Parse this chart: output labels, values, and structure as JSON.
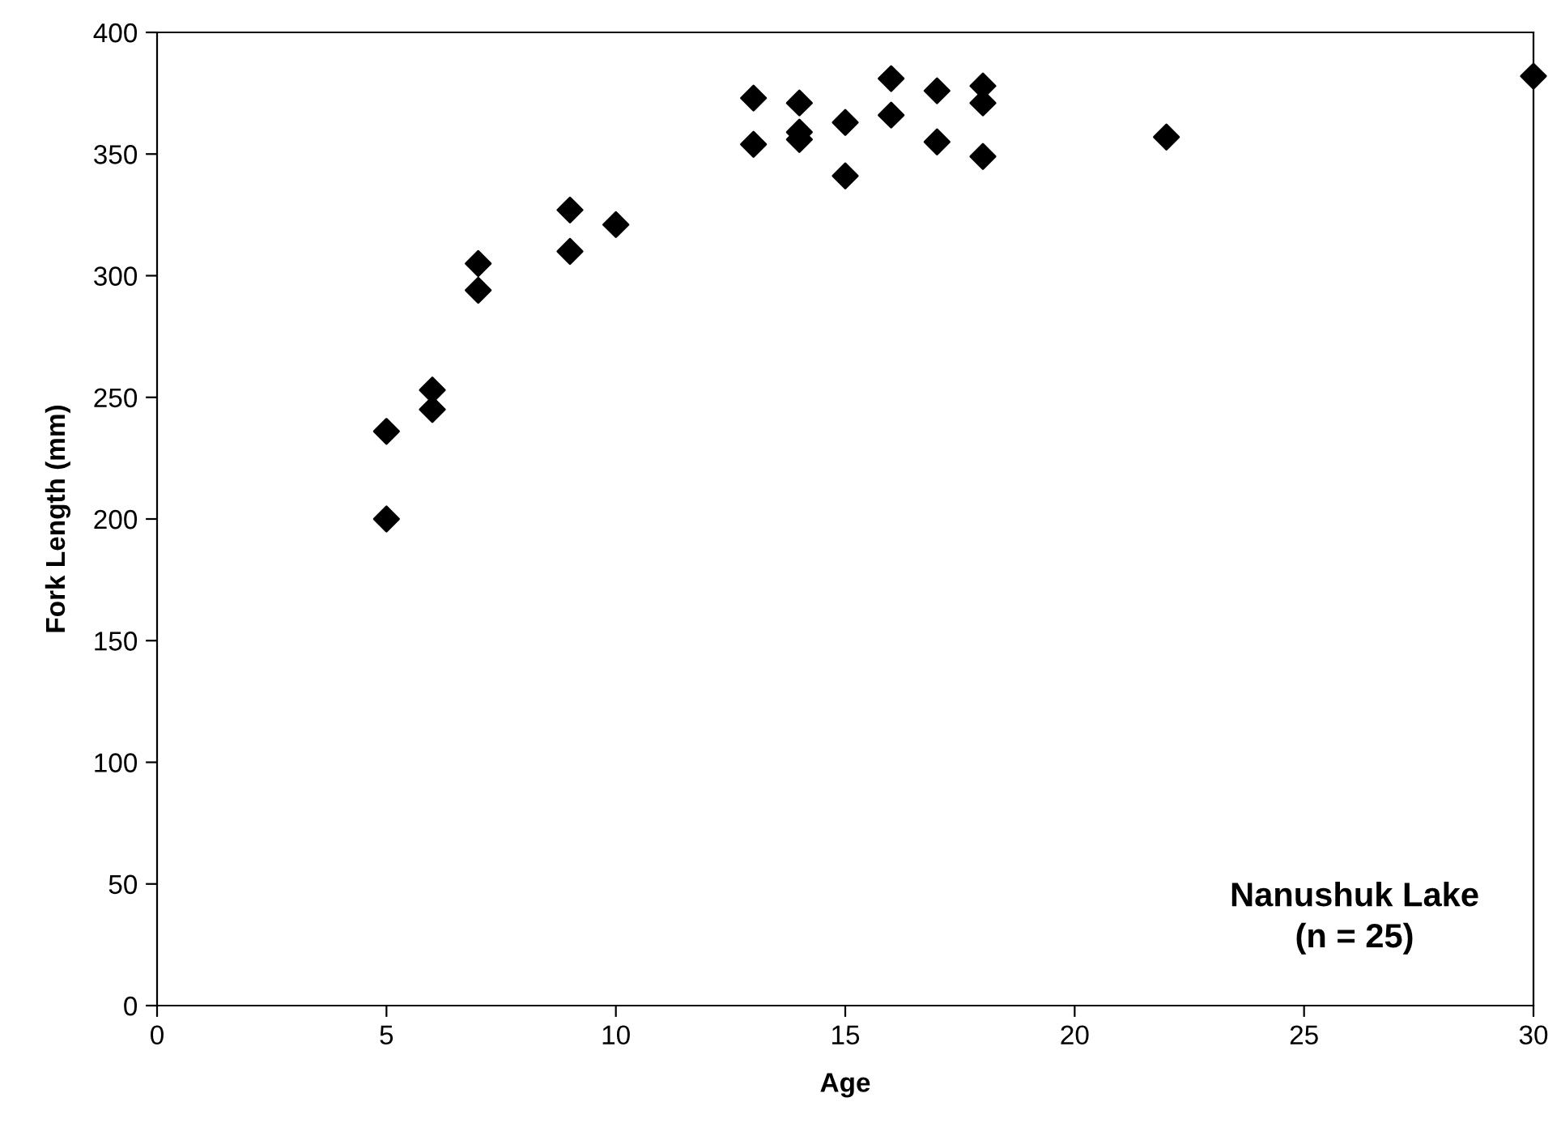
{
  "chart_data": {
    "type": "scatter",
    "xlabel": "Age",
    "ylabel": "Fork Length (mm)",
    "annotations": [
      "Nanushuk Lake\n(n = 25)"
    ],
    "x": [
      5,
      5,
      6,
      6,
      7,
      7,
      9,
      9,
      10,
      13,
      13,
      14,
      14,
      14,
      15,
      15,
      16,
      16,
      17,
      17,
      18,
      18,
      18,
      22,
      30
    ],
    "series": [
      {
        "color": "#000000",
        "values": [
          236,
          200,
          253,
          245,
          305,
          294,
          327,
          310,
          321,
          373,
          354,
          371,
          359,
          356,
          363,
          341,
          381,
          366,
          376,
          355,
          378,
          371,
          349,
          357,
          382
        ]
      }
    ],
    "xlim": [
      0,
      30
    ],
    "xticks": [
      0,
      5,
      10,
      15,
      20,
      25,
      30
    ],
    "ylim": [
      0,
      400
    ],
    "yticks": [
      0,
      50,
      100,
      150,
      200,
      250,
      300,
      350,
      400
    ],
    "marker": "diamond",
    "grid": false,
    "legend": false
  }
}
